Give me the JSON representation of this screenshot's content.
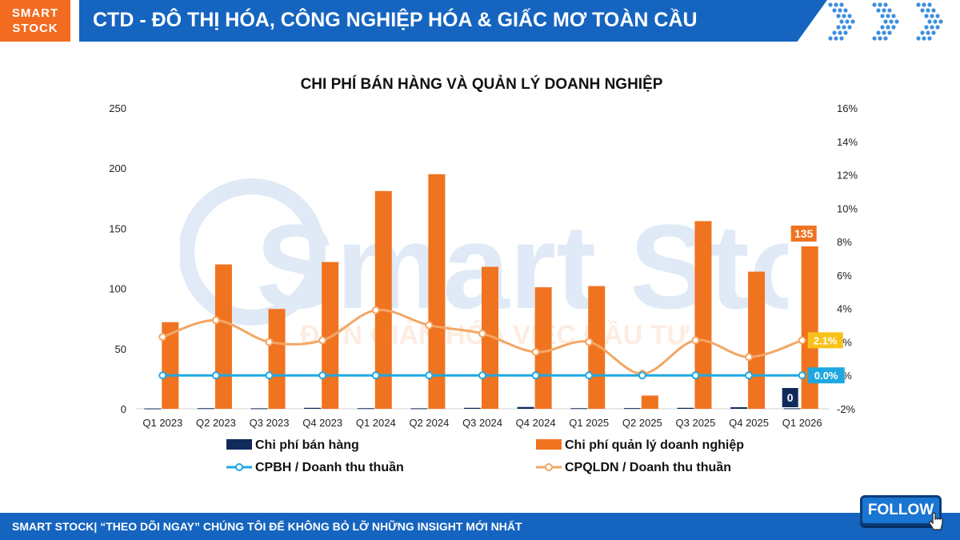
{
  "header": {
    "logo_line1": "SMART",
    "logo_line2": "STOCK",
    "title": "CTD - ĐÔ THỊ HÓA, CÔNG NGHIỆP HÓA & GIẤC MƠ TOÀN CẦU"
  },
  "footer": {
    "text": "SMART STOCK| “THEO DÕI NGAY” CHÚNG TÔI ĐỂ KHÔNG BỎ LỠ NHỮNG INSIGHT MỚI NHẤT",
    "follow_label": "FOLLOW"
  },
  "watermark": {
    "brand": "Smart Stock",
    "slogan": "ĐƠN GIẢN HÓA VIỆC ĐẦU TƯ"
  },
  "colors": {
    "orange": "#f07320",
    "navy": "#102a5c",
    "cyan": "#1fa8e0",
    "light_orange": "#f2a765",
    "header_blue": "#1565c0"
  },
  "chart_data": {
    "type": "bar",
    "title": "CHI PHÍ BÁN HÀNG VÀ QUẢN LÝ DOANH NGHIỆP",
    "categories": [
      "Q1 2023",
      "Q2 2023",
      "Q3 2023",
      "Q4 2023",
      "Q1 2024",
      "Q2 2024",
      "Q3 2024",
      "Q4 2024",
      "Q1 2025",
      "Q2 2025",
      "Q3 2025",
      "Q4 2025",
      "Q1 2026"
    ],
    "ylim": [
      0,
      250
    ],
    "yticks": [
      "0",
      "50",
      "100",
      "150",
      "200",
      "250"
    ],
    "y2lim": [
      -2,
      16
    ],
    "y2ticks": [
      "-2%",
      "0%",
      "2%",
      "4%",
      "6%",
      "8%",
      "10%",
      "12%",
      "14%",
      "16%"
    ],
    "series": [
      {
        "name": "Chi phí bán hàng",
        "kind": "bar",
        "axis": "left",
        "color": "#102a5c",
        "values": [
          0.3,
          0.5,
          0.4,
          0.8,
          0.5,
          0.4,
          0.8,
          1.5,
          0.5,
          0.6,
          0.8,
          1.3,
          0.4
        ]
      },
      {
        "name": "Chi phí quản lý doanh nghiệp",
        "kind": "bar",
        "axis": "left",
        "color": "#f07320",
        "values": [
          72,
          120,
          83,
          122,
          181,
          195,
          118,
          101,
          102,
          11,
          156,
          114,
          135
        ]
      },
      {
        "name": "CPBH / Doanh thu thuần",
        "kind": "line",
        "axis": "right",
        "color": "#1fa8e0",
        "values": [
          0.0,
          0.0,
          0.0,
          0.0,
          0.0,
          0.0,
          0.0,
          0.0,
          0.0,
          0.0,
          0.0,
          0.0,
          0.0
        ]
      },
      {
        "name": "CPQLDN / Doanh thu thuần",
        "kind": "line",
        "axis": "right",
        "color": "#f2a765",
        "values": [
          2.3,
          3.3,
          2.0,
          2.1,
          3.9,
          3.0,
          2.5,
          1.4,
          2.0,
          0.1,
          2.1,
          1.1,
          2.1
        ]
      }
    ],
    "data_labels": {
      "bar_last_orange": "135",
      "bar_last_navy": "0",
      "line_last_orange": "2.1%",
      "line_last_cyan": "0.0%"
    },
    "legend_position": "bottom",
    "grid": false
  }
}
